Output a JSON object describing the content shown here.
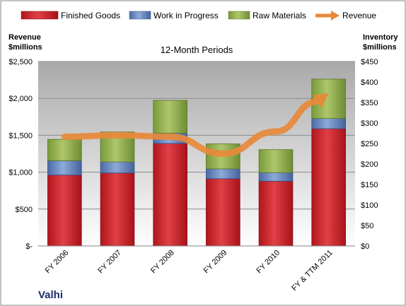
{
  "chart_data": {
    "type": "bar",
    "stacked": true,
    "subtitle": "12-Month Periods",
    "company": "Valhi",
    "left_axis": {
      "title_line1": "Revenue",
      "title_line2": "$millions",
      "ylim": [
        0,
        2500
      ],
      "ticks": [
        "$-",
        "$500",
        "$1,000",
        "$1,500",
        "$2,000",
        "$2,500"
      ]
    },
    "right_axis": {
      "title_line1": "Inventory",
      "title_line2": "$millions",
      "ylim": [
        0,
        450
      ],
      "ticks": [
        "$0",
        "$50",
        "$100",
        "$150",
        "$200",
        "$250",
        "$300",
        "$350",
        "$400",
        "$450"
      ]
    },
    "categories": [
      "FY 2006",
      "FY 2007",
      "FY 2008",
      "FY 2009",
      "FY 2010",
      "FY & TTM 2011"
    ],
    "series": [
      {
        "name": "Finished Goods",
        "axis": "right",
        "color": "#c0282d",
        "values": [
          173,
          178,
          250,
          164,
          158,
          286
        ]
      },
      {
        "name": "Work in Progress",
        "axis": "right",
        "color": "#5b7fbf",
        "values": [
          35,
          27,
          25,
          24,
          21,
          25
        ]
      },
      {
        "name": "Raw Materials",
        "axis": "right",
        "color": "#8daa4a",
        "values": [
          52,
          73,
          80,
          61,
          56,
          96
        ]
      },
      {
        "name": "Revenue",
        "axis": "left",
        "type": "line",
        "color": "#e8893a",
        "values": [
          1480,
          1500,
          1480,
          1250,
          1550,
          2070
        ]
      }
    ],
    "legend_position": "top",
    "grid": true
  }
}
